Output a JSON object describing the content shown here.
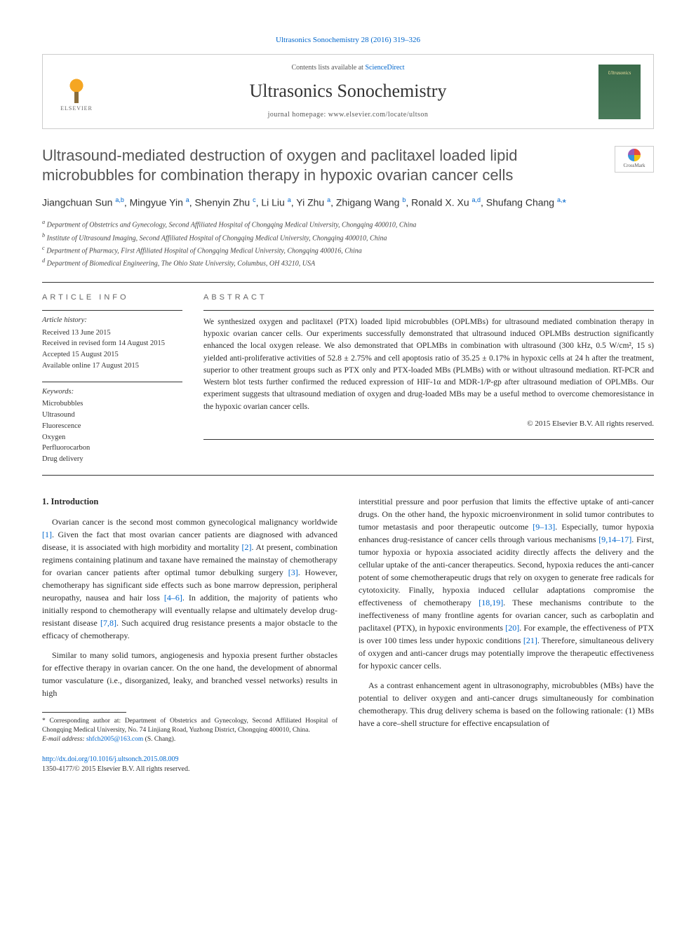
{
  "citation": "Ultrasonics Sonochemistry 28 (2016) 319–326",
  "header": {
    "contents_prefix": "Contents lists available at ",
    "contents_link": "ScienceDirect",
    "journal_name": "Ultrasonics Sonochemistry",
    "homepage_prefix": "journal homepage: ",
    "homepage_url": "www.elsevier.com/locate/ultson",
    "publisher": "ELSEVIER"
  },
  "article": {
    "title": "Ultrasound-mediated destruction of oxygen and paclitaxel loaded lipid microbubbles for combination therapy in hypoxic ovarian cancer cells",
    "crossmark_label": "CrossMark"
  },
  "authors_html": "Jiangchuan Sun <sup>a,b</sup>, Mingyue Yin <sup>a</sup>, Shenyin Zhu <sup>c</sup>, Li Liu <sup>a</sup>, Yi Zhu <sup>a</sup>, Zhigang Wang <sup>b</sup>, Ronald X. Xu <sup>a,d</sup>, Shufang Chang <sup>a,</sup><span class='corr'>*</span>",
  "affiliations": [
    "a Department of Obstetrics and Gynecology, Second Affiliated Hospital of Chongqing Medical University, Chongqing 400010, China",
    "b Institute of Ultrasound Imaging, Second Affiliated Hospital of Chongqing Medical University, Chongqing 400010, China",
    "c Department of Pharmacy, First Affiliated Hospital of Chongqing Medical University, Chongqing 400016, China",
    "d Department of Biomedical Engineering, The Ohio State University, Columbus, OH 43210, USA"
  ],
  "info": {
    "heading_info": "ARTICLE INFO",
    "heading_abstract": "ABSTRACT",
    "history_title": "Article history:",
    "history": [
      "Received 13 June 2015",
      "Received in revised form 14 August 2015",
      "Accepted 15 August 2015",
      "Available online 17 August 2015"
    ],
    "keywords_title": "Keywords:",
    "keywords": [
      "Microbubbles",
      "Ultrasound",
      "Fluorescence",
      "Oxygen",
      "Perfluorocarbon",
      "Drug delivery"
    ]
  },
  "abstract": "We synthesized oxygen and paclitaxel (PTX) loaded lipid microbubbles (OPLMBs) for ultrasound mediated combination therapy in hypoxic ovarian cancer cells. Our experiments successfully demonstrated that ultrasound induced OPLMBs destruction significantly enhanced the local oxygen release. We also demonstrated that OPLMBs in combination with ultrasound (300 kHz, 0.5 W/cm², 15 s) yielded anti-proliferative activities of 52.8 ± 2.75% and cell apoptosis ratio of 35.25 ± 0.17% in hypoxic cells at 24 h after the treatment, superior to other treatment groups such as PTX only and PTX-loaded MBs (PLMBs) with or without ultrasound mediation. RT-PCR and Western blot tests further confirmed the reduced expression of HIF-1α and MDR-1/P-gp after ultrasound mediation of OPLMBs. Our experiment suggests that ultrasound mediation of oxygen and drug-loaded MBs may be a useful method to overcome chemoresistance in the hypoxic ovarian cancer cells.",
  "abstract_copyright": "© 2015 Elsevier B.V. All rights reserved.",
  "section1_heading": "1. Introduction",
  "col1_p1": "Ovarian cancer is the second most common gynecological malignancy worldwide [1]. Given the fact that most ovarian cancer patients are diagnosed with advanced disease, it is associated with high morbidity and mortality [2]. At present, combination regimens containing platinum and taxane have remained the mainstay of chemotherapy for ovarian cancer patients after optimal tumor debulking surgery [3]. However, chemotherapy has significant side effects such as bone marrow depression, peripheral neuropathy, nausea and hair loss [4–6]. In addition, the majority of patients who initially respond to chemotherapy will eventually relapse and ultimately develop drug-resistant disease [7,8]. Such acquired drug resistance presents a major obstacle to the efficacy of chemotherapy.",
  "col1_p2": "Similar to many solid tumors, angiogenesis and hypoxia present further obstacles for effective therapy in ovarian cancer. On the one hand, the development of abnormal tumor vasculature (i.e., disorganized, leaky, and branched vessel networks) results in high",
  "col2_p1": "interstitial pressure and poor perfusion that limits the effective uptake of anti-cancer drugs. On the other hand, the hypoxic microenvironment in solid tumor contributes to tumor metastasis and poor therapeutic outcome [9–13]. Especially, tumor hypoxia enhances drug-resistance of cancer cells through various mechanisms [9,14–17]. First, tumor hypoxia or hypoxia associated acidity directly affects the delivery and the cellular uptake of the anti-cancer therapeutics. Second, hypoxia reduces the anti-cancer potent of some chemotherapeutic drugs that rely on oxygen to generate free radicals for cytotoxicity. Finally, hypoxia induced cellular adaptations compromise the effectiveness of chemotherapy [18,19]. These mechanisms contribute to the ineffectiveness of many frontline agents for ovarian cancer, such as carboplatin and paclitaxel (PTX), in hypoxic environments [20]. For example, the effectiveness of PTX is over 100 times less under hypoxic conditions [21]. Therefore, simultaneous delivery of oxygen and anti-cancer drugs may potentially improve the therapeutic effectiveness for hypoxic cancer cells.",
  "col2_p2": "As a contrast enhancement agent in ultrasonography, microbubbles (MBs) have the potential to deliver oxygen and anti-cancer drugs simultaneously for combination chemotherapy. This drug delivery schema is based on the following rationale: (1) MBs have a core–shell structure for effective encapsulation of",
  "footnote": {
    "corr_label": "* Corresponding author at: Department of Obstetrics and Gynecology, Second Affiliated Hospital of Chongqing Medical University, No. 74 Linjiang Road, Yuzhong District, Chongqing 400010, China.",
    "email_label": "E-mail address: ",
    "email": "shfch2005@163.com",
    "email_suffix": " (S. Chang)."
  },
  "doi": {
    "url": "http://dx.doi.org/10.1016/j.ultsonch.2015.08.009",
    "issn_line": "1350-4177/© 2015 Elsevier B.V. All rights reserved."
  }
}
